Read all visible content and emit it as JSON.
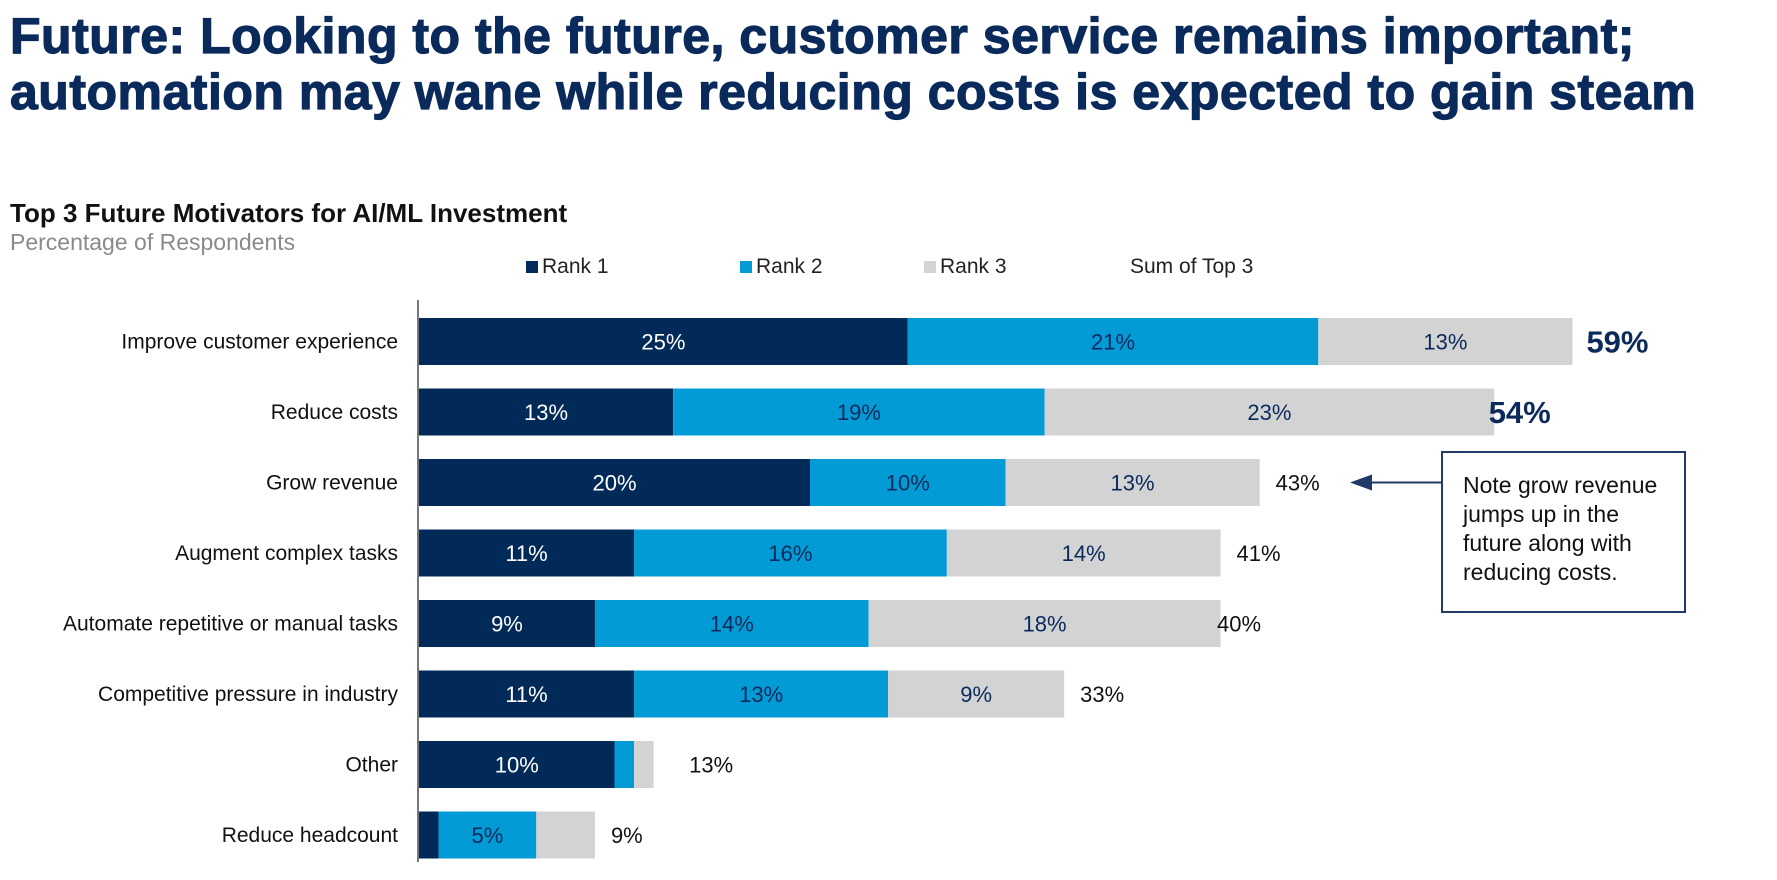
{
  "headline": "Future: Looking to the future, customer service remains important; automation may wane while reducing costs is expected to gain steam",
  "colors": {
    "rank1": "#012a59",
    "rank2": "#039bd5",
    "rank3": "#d3d3d3",
    "headline": "#0a2a5c",
    "highlight_sum": "#0a2a5c"
  },
  "note": "Note grow revenue jumps up in the future along with reducing costs.",
  "chart_data": {
    "type": "bar",
    "orientation": "horizontal",
    "stacked": true,
    "title": "Top 3 Future Motivators for AI/ML Investment",
    "subtitle": "Percentage of Respondents",
    "xlabel": "",
    "ylabel": "",
    "xlim": [
      0,
      60
    ],
    "grid": false,
    "legend_position": "top",
    "legend": [
      "Rank 1",
      "Rank 2",
      "Rank 3",
      "Sum of Top 3"
    ],
    "categories": [
      "Improve customer experience",
      "Reduce costs",
      "Grow revenue",
      "Augment complex tasks",
      "Automate repetitive or manual tasks",
      "Competitive pressure in industry",
      "Other",
      "Reduce headcount"
    ],
    "series": [
      {
        "name": "Rank 1",
        "values": [
          25,
          13,
          20,
          11,
          9,
          11,
          10,
          1
        ],
        "labels": [
          "25%",
          "13%",
          "20%",
          "11%",
          "9%",
          "11%",
          "10%",
          ""
        ]
      },
      {
        "name": "Rank 2",
        "values": [
          21,
          19,
          10,
          16,
          14,
          13,
          1,
          5
        ],
        "labels": [
          "21%",
          "19%",
          "10%",
          "16%",
          "14%",
          "13%",
          "",
          "5%"
        ]
      },
      {
        "name": "Rank 3",
        "values": [
          13,
          23,
          13,
          14,
          18,
          9,
          1,
          3
        ],
        "labels": [
          "13%",
          "23%",
          "13%",
          "14%",
          "18%",
          "9%",
          "",
          ""
        ]
      }
    ],
    "sum_of_top3": [
      59,
      54,
      43,
      41,
      40,
      33,
      13,
      9
    ],
    "sum_labels": [
      "59%",
      "54%",
      "43%",
      "41%",
      "40%",
      "33%",
      "13%",
      "9%"
    ],
    "highlighted_sums": [
      0,
      1
    ],
    "annotation": {
      "target": "Grow revenue",
      "text": "Note grow revenue jumps up in the future along with reducing costs."
    }
  }
}
